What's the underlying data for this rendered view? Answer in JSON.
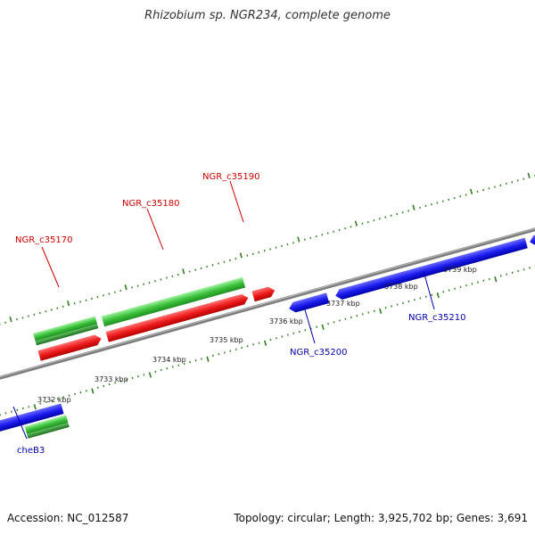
{
  "title": "Rhizobium sp. NGR234, complete genome",
  "footer": {
    "accession": "Accession: NC_012587",
    "summary": "Topology: circular; Length: 3,925,702 bp; Genes: 3,691"
  },
  "colors": {
    "backbone": "#808080",
    "tick": "#2e7d1e",
    "forward_gene": "#e01a1a",
    "reverse_gene": "#1a1ae6",
    "other_gene": "#33bb33",
    "label_forward": "#cc0000",
    "label_reverse": "#0000aa"
  },
  "scale_labels": [
    "3732 kbp",
    "3733 kbp",
    "3734 kbp",
    "3735 kbp",
    "3736 kbp",
    "3737 kbp",
    "3738 kbp",
    "3739 kbp"
  ],
  "genes": [
    {
      "name": "NGR_c35170",
      "strand": "forward"
    },
    {
      "name": "NGR_c35180",
      "strand": "forward"
    },
    {
      "name": "NGR_c35190",
      "strand": "forward"
    },
    {
      "name": "NGR_c35200",
      "strand": "reverse"
    },
    {
      "name": "NGR_c35210",
      "strand": "reverse"
    },
    {
      "name": "cheB3",
      "strand": "reverse"
    }
  ]
}
